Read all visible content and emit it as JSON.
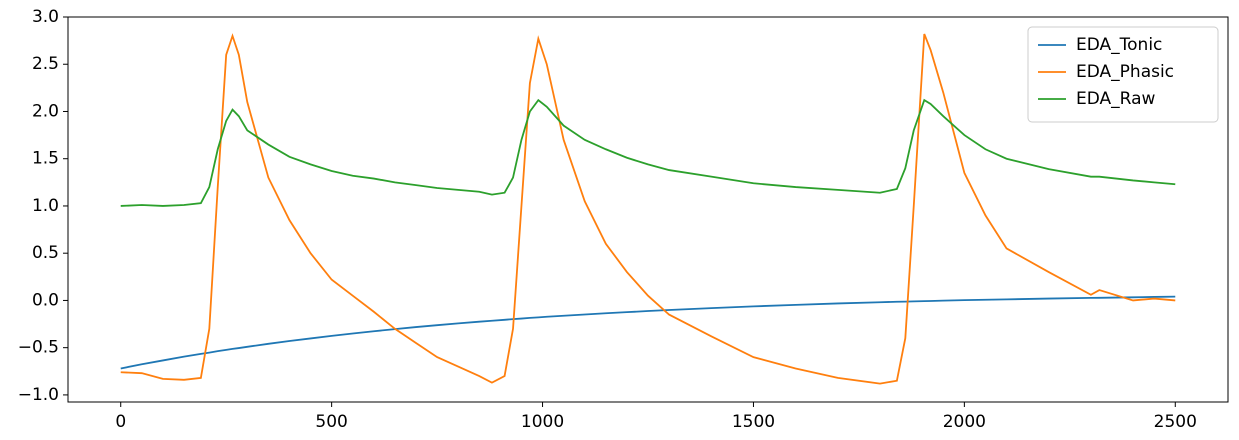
{
  "chart_data": {
    "type": "line",
    "x": [
      0,
      50,
      100,
      150,
      190,
      210,
      230,
      250,
      265,
      280,
      300,
      350,
      400,
      450,
      500,
      550,
      600,
      650,
      700,
      750,
      800,
      850,
      880,
      910,
      930,
      950,
      970,
      990,
      1010,
      1050,
      1100,
      1150,
      1200,
      1250,
      1300,
      1400,
      1500,
      1600,
      1700,
      1800,
      1840,
      1860,
      1880,
      1905,
      1920,
      1950,
      2000,
      2050,
      2100,
      2200,
      2300,
      2320,
      2400,
      2450,
      2500
    ],
    "series": [
      {
        "name": "EDA_Tonic",
        "color": "#1f77b4",
        "values": [
          -0.72,
          -0.676,
          -0.635,
          -0.595,
          -0.566,
          -0.552,
          -0.537,
          -0.523,
          -0.513,
          -0.504,
          -0.491,
          -0.459,
          -0.429,
          -0.402,
          -0.375,
          -0.35,
          -0.326,
          -0.304,
          -0.282,
          -0.262,
          -0.243,
          -0.225,
          -0.215,
          -0.205,
          -0.198,
          -0.192,
          -0.185,
          -0.179,
          -0.173,
          -0.162,
          -0.149,
          -0.136,
          -0.124,
          -0.112,
          -0.101,
          -0.081,
          -0.063,
          -0.047,
          -0.032,
          -0.019,
          -0.014,
          -0.013,
          -0.01,
          -0.007,
          -0.006,
          -0.002,
          0.003,
          0.007,
          0.011,
          0.02,
          0.027,
          0.028,
          0.033,
          0.037,
          0.04
        ]
      },
      {
        "name": "EDA_Phasic",
        "color": "#ff7f0e",
        "values": [
          -0.76,
          -0.77,
          -0.83,
          -0.84,
          -0.82,
          -0.3,
          1.2,
          2.6,
          2.8,
          2.6,
          2.1,
          1.3,
          0.85,
          0.5,
          0.22,
          0.05,
          -0.12,
          -0.3,
          -0.45,
          -0.6,
          -0.7,
          -0.8,
          -0.87,
          -0.8,
          -0.3,
          1.0,
          2.3,
          2.77,
          2.5,
          1.7,
          1.05,
          0.6,
          0.3,
          0.05,
          -0.15,
          -0.38,
          -0.6,
          -0.72,
          -0.82,
          -0.88,
          -0.85,
          -0.4,
          1.0,
          2.82,
          2.65,
          2.2,
          1.35,
          0.9,
          0.55,
          0.3,
          0.06,
          0.11,
          0.0,
          0.02,
          0.0
        ]
      },
      {
        "name": "EDA_Raw",
        "color": "#2ca02c",
        "values": [
          1.0,
          1.01,
          1.0,
          1.01,
          1.03,
          1.2,
          1.6,
          1.9,
          2.02,
          1.95,
          1.8,
          1.65,
          1.52,
          1.44,
          1.37,
          1.32,
          1.29,
          1.25,
          1.22,
          1.19,
          1.17,
          1.15,
          1.12,
          1.14,
          1.3,
          1.7,
          2.0,
          2.12,
          2.05,
          1.85,
          1.7,
          1.6,
          1.51,
          1.44,
          1.38,
          1.31,
          1.24,
          1.2,
          1.17,
          1.14,
          1.18,
          1.4,
          1.8,
          2.12,
          2.08,
          1.95,
          1.75,
          1.6,
          1.5,
          1.39,
          1.31,
          1.31,
          1.27,
          1.25,
          1.23
        ]
      }
    ],
    "xlim": [
      -125,
      2625
    ],
    "ylim": [
      -1.075,
      3.0
    ],
    "xticks": [
      0,
      500,
      1000,
      1500,
      2000,
      2500
    ],
    "yticks": [
      {
        "value": -1,
        "label": "−1.0"
      },
      {
        "value": -0.5,
        "label": "−0.5"
      },
      {
        "value": 0,
        "label": "0.0"
      },
      {
        "value": 0.5,
        "label": "0.5"
      },
      {
        "value": 1,
        "label": "1.0"
      },
      {
        "value": 1.5,
        "label": "1.5"
      },
      {
        "value": 2,
        "label": "2.0"
      },
      {
        "value": 2.5,
        "label": "2.5"
      },
      {
        "value": 3,
        "label": "3.0"
      }
    ],
    "legend": "upper right"
  }
}
